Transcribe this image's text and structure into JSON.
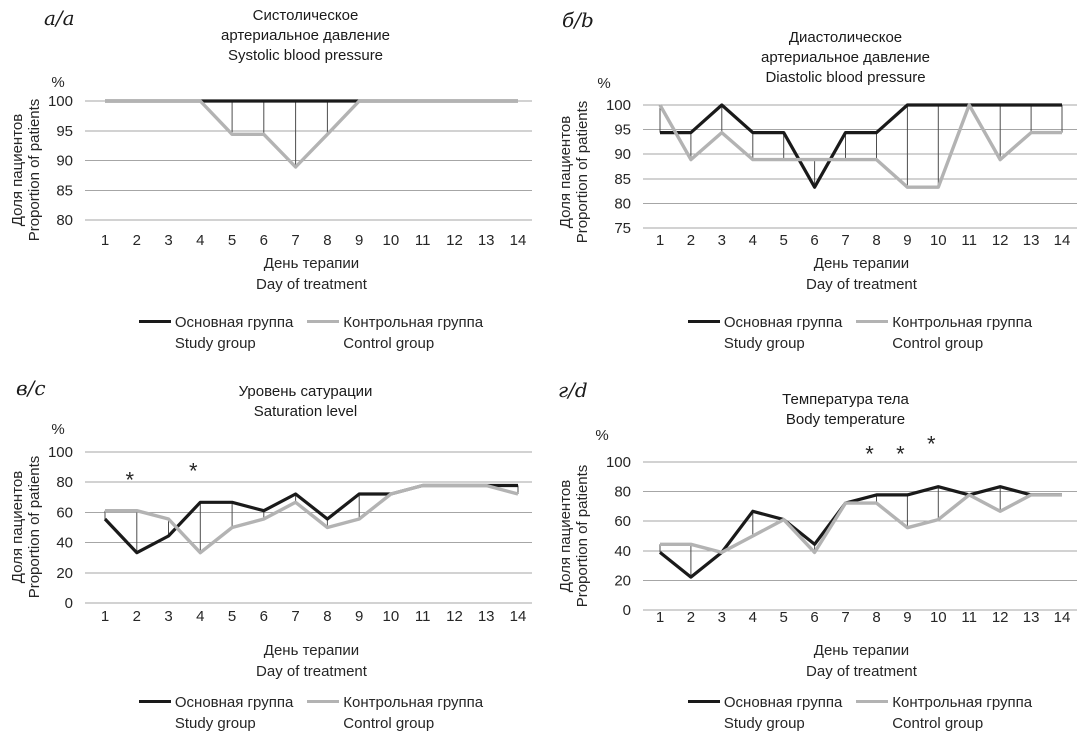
{
  "legend": {
    "study": "Основная группа\nStudy group",
    "control": "Контрольная группа\nControl group"
  },
  "chart_data": [
    {
      "id": "a",
      "letter": "а/a",
      "type": "line",
      "title": "Систолическое\nартериальное давление\nSystolic blood pressure",
      "unit": "%",
      "ylabel": "Доля пациентов\nProportion of patients",
      "xlabel": "День терапии\nDay of treatment",
      "x": [
        1,
        2,
        3,
        4,
        5,
        6,
        7,
        8,
        9,
        10,
        11,
        12,
        13,
        14
      ],
      "ylim": [
        80,
        100
      ],
      "y_ticks": [
        100,
        95,
        90,
        85,
        80
      ],
      "grid": true,
      "legend_position": "bottom",
      "high_low_lines": true,
      "series": [
        {
          "name": "Основная группа / Study group",
          "color": "#1a1a1a",
          "values": [
            100,
            100,
            100,
            100,
            100,
            100,
            100,
            100,
            100,
            100,
            100,
            100,
            100,
            100
          ]
        },
        {
          "name": "Контрольная группа / Control group",
          "color": "#b3b3b3",
          "values": [
            100,
            100,
            100,
            100,
            94.4,
            94.4,
            88.9,
            94.4,
            100,
            100,
            100,
            100,
            100,
            100
          ]
        }
      ],
      "annotations": []
    },
    {
      "id": "b",
      "letter": "б/b",
      "type": "line",
      "title": "Диастолическое\nартериальное давление\nDiastolic blood pressure",
      "unit": "%",
      "ylabel": "Доля пациентов\nProportion of patients",
      "xlabel": "День терапии\nDay of treatment",
      "x": [
        1,
        2,
        3,
        4,
        5,
        6,
        7,
        8,
        9,
        10,
        11,
        12,
        13,
        14
      ],
      "ylim": [
        75,
        100
      ],
      "y_ticks": [
        100,
        95,
        90,
        85,
        80,
        75
      ],
      "grid": true,
      "legend_position": "bottom",
      "high_low_lines": true,
      "series": [
        {
          "name": "Основная группа / Study group",
          "color": "#1a1a1a",
          "values": [
            94.4,
            94.4,
            100,
            94.4,
            94.4,
            83.3,
            94.4,
            94.4,
            100,
            100,
            100,
            100,
            100,
            100
          ]
        },
        {
          "name": "Контрольная группа / Control group",
          "color": "#b3b3b3",
          "values": [
            100,
            88.9,
            94.4,
            88.9,
            88.9,
            88.9,
            88.9,
            88.9,
            83.3,
            83.3,
            100,
            88.9,
            94.4,
            94.4
          ]
        }
      ],
      "annotations": []
    },
    {
      "id": "c",
      "letter": "в/c",
      "type": "line",
      "title": "Уровень сатурации\nSaturation level",
      "unit": "%",
      "ylabel": "Доля пациентов\nProportion of patients",
      "xlabel": "День терапии\nDay of treatment",
      "x": [
        1,
        2,
        3,
        4,
        5,
        6,
        7,
        8,
        9,
        10,
        11,
        12,
        13,
        14
      ],
      "ylim": [
        0,
        100
      ],
      "y_ticks": [
        100,
        80,
        60,
        40,
        20,
        0
      ],
      "grid": true,
      "legend_position": "bottom",
      "high_low_lines": true,
      "series": [
        {
          "name": "Основная группа / Study group",
          "color": "#1a1a1a",
          "values": [
            55.6,
            33.3,
            44.4,
            66.7,
            66.7,
            61.1,
            72.2,
            55.6,
            72.2,
            72.2,
            77.8,
            77.8,
            77.8,
            77.8
          ]
        },
        {
          "name": "Контрольная группа / Control group",
          "color": "#b3b3b3",
          "values": [
            61.1,
            61.1,
            55.6,
            33.3,
            50,
            55.6,
            66.7,
            50,
            55.6,
            72.2,
            77.8,
            77.8,
            77.8,
            72.2
          ]
        }
      ],
      "annotations": [
        {
          "symbol": "*",
          "day": 2,
          "y": 83
        },
        {
          "symbol": "*",
          "day": 4,
          "y": 89
        }
      ]
    },
    {
      "id": "d",
      "letter": "г/d",
      "type": "line",
      "title": "Температура тела\nBody temperature",
      "unit": "%",
      "ylabel": "Доля пациентов\nProportion of patients",
      "xlabel": "День терапии\nDay of treatment",
      "x": [
        1,
        2,
        3,
        4,
        5,
        6,
        7,
        8,
        9,
        10,
        11,
        12,
        13,
        14
      ],
      "ylim": [
        0,
        100
      ],
      "y_ticks": [
        100,
        80,
        60,
        40,
        20,
        0
      ],
      "grid": true,
      "legend_position": "bottom",
      "high_low_lines": true,
      "series": [
        {
          "name": "Основная группа / Study group",
          "color": "#1a1a1a",
          "values": [
            38.9,
            22.2,
            38.9,
            66.7,
            61.1,
            44.4,
            72.2,
            77.8,
            77.8,
            83.3,
            77.8,
            83.3,
            77.8,
            77.8
          ]
        },
        {
          "name": "Контрольная группа / Control group",
          "color": "#b3b3b3",
          "values": [
            44.4,
            44.4,
            38.9,
            50,
            61.1,
            38.9,
            72.2,
            72.2,
            55.6,
            61.1,
            77.8,
            66.7,
            77.8,
            77.8
          ]
        }
      ],
      "annotations": [
        {
          "symbol": "*",
          "day": 8,
          "y": 107
        },
        {
          "symbol": "*",
          "day": 9,
          "y": 107
        },
        {
          "symbol": "*",
          "day": 10,
          "y": 114
        }
      ]
    }
  ],
  "colors": {
    "study_line": "#1a1a1a",
    "control_line": "#b3b3b3",
    "gridline": "#a6a6a6",
    "high_low_line": "#4d4d4d",
    "text": "#262626"
  }
}
